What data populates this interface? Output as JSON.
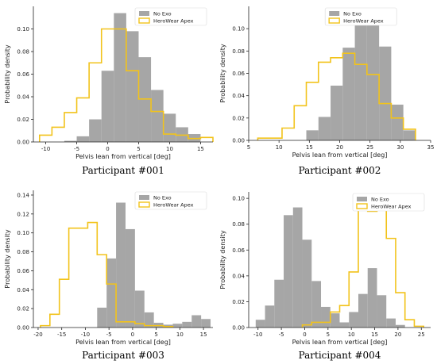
{
  "chart_data": [
    {
      "type": "histogram",
      "caption": "Participant #001",
      "xlabel": "Pelvis lean from vertical [deg]",
      "ylabel": "Probability density",
      "xlim": [
        -12,
        17
      ],
      "ylim": [
        0,
        0.12
      ],
      "xticks": [
        -10,
        -5,
        0,
        5,
        10,
        15
      ],
      "yticks": [
        0.0,
        0.02,
        0.04,
        0.06,
        0.08,
        0.1
      ],
      "ytick_labels": [
        "0.00",
        "0.02",
        "0.04",
        "0.06",
        "0.08",
        "0.10"
      ],
      "legend_position": "top-right",
      "series": [
        {
          "name": "No Exo",
          "style": "filled",
          "color": "#a6a6a6",
          "edges": [
            -7,
            -5,
            -3,
            -1,
            1,
            3,
            5,
            7,
            9,
            11,
            13,
            15
          ],
          "values": [
            0.001,
            0.005,
            0.02,
            0.063,
            0.114,
            0.098,
            0.075,
            0.046,
            0.025,
            0.013,
            0.007
          ]
        },
        {
          "name": "HeroWear Apex",
          "style": "step",
          "color": "#f2c31b",
          "edges": [
            -11,
            -9,
            -7,
            -5,
            -3,
            -1,
            1,
            3,
            5,
            7,
            9,
            11,
            13,
            15,
            17
          ],
          "values": [
            0.006,
            0.013,
            0.026,
            0.039,
            0.07,
            0.1,
            0.1,
            0.063,
            0.038,
            0.027,
            0.007,
            0.006,
            0.003,
            0.004
          ]
        }
      ]
    },
    {
      "type": "histogram",
      "caption": "Participant #002",
      "xlabel": "Pelvis lean from vertical [deg]",
      "ylabel": "Probability density",
      "xlim": [
        5,
        35
      ],
      "ylim": [
        0,
        0.12
      ],
      "xticks": [
        5,
        10,
        15,
        20,
        25,
        30,
        35
      ],
      "yticks": [
        0.0,
        0.02,
        0.04,
        0.06,
        0.08,
        0.1
      ],
      "ytick_labels": [
        "0.00",
        "0.02",
        "0.04",
        "0.06",
        "0.08",
        "0.10"
      ],
      "legend_position": "top-left",
      "series": [
        {
          "name": "No Exo",
          "style": "filled",
          "color": "#a6a6a6",
          "edges": [
            14.5,
            16.5,
            18.5,
            20.5,
            22.5,
            24.5,
            26.5,
            28.5,
            30.5,
            32.5
          ],
          "values": [
            0.009,
            0.021,
            0.049,
            0.083,
            0.112,
            0.107,
            0.084,
            0.032,
            0.009
          ]
        },
        {
          "name": "HeroWear Apex",
          "style": "step",
          "color": "#f2c31b",
          "edges": [
            6.5,
            8.5,
            10.5,
            12.5,
            14.5,
            16.5,
            18.5,
            20.5,
            22.5,
            24.5,
            26.5,
            28.5,
            30.5,
            32.5
          ],
          "values": [
            0.002,
            0.002,
            0.011,
            0.031,
            0.052,
            0.07,
            0.074,
            0.078,
            0.068,
            0.059,
            0.033,
            0.02,
            0.01
          ]
        }
      ]
    },
    {
      "type": "histogram",
      "caption": "Participant #003",
      "xlabel": "Pelvis lean from vertical [deg]",
      "ylabel": "Probability density",
      "xlim": [
        -21,
        17
      ],
      "ylim": [
        0,
        0.145
      ],
      "xticks": [
        -20,
        -15,
        -10,
        -5,
        0,
        5,
        10,
        15
      ],
      "yticks": [
        0.0,
        0.02,
        0.04,
        0.06,
        0.08,
        0.1,
        0.12,
        0.14
      ],
      "ytick_labels": [
        "0.00",
        "0.02",
        "0.04",
        "0.06",
        "0.08",
        "0.10",
        "0.12",
        "0.14"
      ],
      "legend_position": "top-right",
      "series": [
        {
          "name": "No Exo",
          "style": "filled",
          "color": "#a6a6a6",
          "edges": [
            -7.5,
            -5.5,
            -3.5,
            -1.5,
            0.5,
            2.5,
            4.5,
            6.5,
            8.5,
            10.5,
            12.5,
            14.5,
            16.5
          ],
          "values": [
            0.021,
            0.073,
            0.132,
            0.104,
            0.039,
            0.016,
            0.005,
            0.003,
            0.004,
            0.006,
            0.013,
            0.009
          ]
        },
        {
          "name": "HeroWear Apex",
          "style": "step",
          "color": "#f2c31b",
          "edges": [
            -19.5,
            -17.5,
            -15.5,
            -13.5,
            -11.5,
            -9.5,
            -7.5,
            -5.5,
            -3.5,
            -1.5,
            0.5,
            2.5,
            4.5,
            6.5,
            8.5
          ],
          "values": [
            0.002,
            0.014,
            0.051,
            0.105,
            0.105,
            0.111,
            0.077,
            0.046,
            0.006,
            0.006,
            0.004,
            0.002,
            0.002,
            0.001
          ]
        }
      ]
    },
    {
      "type": "histogram",
      "caption": "Participant #004",
      "xlabel": "Pelvis lean from vertical [deg]",
      "ylabel": "Probability density",
      "xlim": [
        -12,
        27
      ],
      "ylim": [
        0,
        0.105
      ],
      "xticks": [
        -10,
        -5,
        0,
        5,
        10,
        15,
        20,
        25
      ],
      "yticks": [
        0.0,
        0.02,
        0.04,
        0.06,
        0.08,
        0.1
      ],
      "ytick_labels": [
        "0.00",
        "0.02",
        "0.04",
        "0.06",
        "0.08",
        "0.10"
      ],
      "legend_position": "top-right",
      "series": [
        {
          "name": "No Exo",
          "style": "filled",
          "color": "#a6a6a6",
          "edges": [
            -10.5,
            -8.5,
            -6.5,
            -4.5,
            -2.5,
            -0.5,
            1.5,
            3.5,
            5.5,
            7.5,
            9.5,
            11.5,
            13.5,
            15.5,
            17.5,
            19.5,
            21.5
          ],
          "values": [
            0.006,
            0.017,
            0.037,
            0.087,
            0.093,
            0.068,
            0.036,
            0.016,
            0.011,
            0.004,
            0.012,
            0.026,
            0.046,
            0.025,
            0.007,
            0.002
          ]
        },
        {
          "name": "HeroWear Apex",
          "style": "step",
          "color": "#f2c31b",
          "edges": [
            -0.5,
            1.5,
            3.5,
            5.5,
            7.5,
            9.5,
            11.5,
            13.5,
            15.5,
            17.5,
            19.5,
            21.5,
            23.5,
            25.5
          ],
          "values": [
            0.002,
            0.004,
            0.004,
            0.012,
            0.017,
            0.043,
            0.099,
            0.09,
            0.1,
            0.069,
            0.027,
            0.006,
            0.001
          ]
        }
      ]
    }
  ]
}
